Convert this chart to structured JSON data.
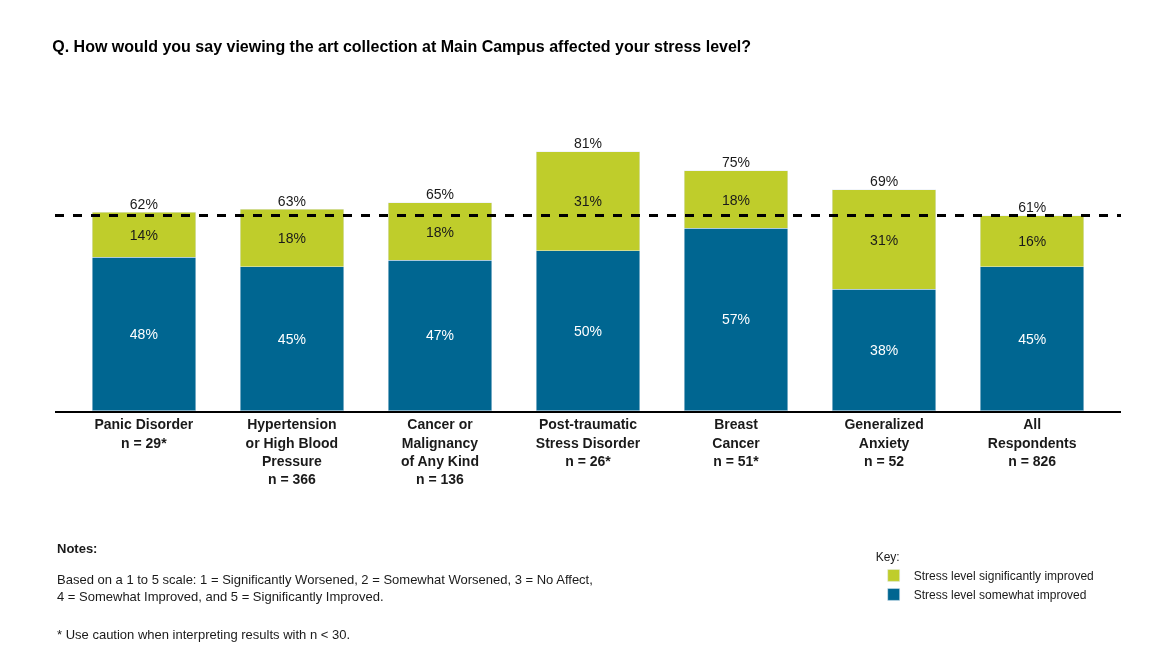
{
  "chart_data": {
    "type": "bar",
    "stacked": true,
    "title": "Q. How would you say viewing the art collection at Main Campus affected your stress level?",
    "categories": [
      "Panic Disorder\nn = 29*",
      "Hypertension\nor High Blood\nPressure\nn = 366",
      "Cancer or\nMalignancy\nof Any Kind\nn = 136",
      "Post-traumatic\nStress Disorder\nn = 26*",
      "Breast\nCancer\nn = 51*",
      "Generalized\nAnxiety\nn = 52",
      "All\nRespondents\nn = 826"
    ],
    "series": [
      {
        "name": "Stress level somewhat improved",
        "color": "#006691",
        "values": [
          48,
          45,
          47,
          50,
          57,
          38,
          45
        ],
        "value_labels": [
          "48%",
          "45%",
          "47%",
          "50%",
          "57%",
          "38%",
          "45%"
        ]
      },
      {
        "name": "Stress level significantly improved",
        "color": "#bfcd2b",
        "values": [
          14,
          18,
          18,
          31,
          18,
          31,
          16
        ],
        "value_labels": [
          "14%",
          "18%",
          "18%",
          "31%",
          "18%",
          "31%",
          "16%"
        ]
      }
    ],
    "totals": [
      "62%",
      "63%",
      "65%",
      "81%",
      "75%",
      "69%",
      "61%"
    ],
    "ref_lines": [
      {
        "axis": "y",
        "value": 61,
        "color": "#000000",
        "line_style": "dashed"
      }
    ],
    "legend": "bottom right",
    "legend_title": "Key:",
    "tick_labels": "x",
    "annotations": [
      "Notes:",
      "Based on a 1 to 5 scale: 1 = Significantly Worsened, 2 = Somewhat Worsened, 3 = No Affect,\n4 = Somewhat Improved, and 5 = Significantly Improved.",
      "* Use caution when interpreting results with n < 30."
    ]
  }
}
